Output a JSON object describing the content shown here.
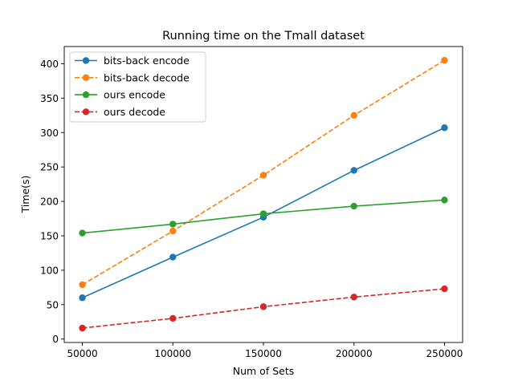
{
  "chart_data": {
    "type": "line",
    "title": "Running time on the Tmall dataset",
    "xlabel": "Num of Sets",
    "ylabel": "Time(s)",
    "x": [
      50000,
      100000,
      150000,
      200000,
      250000
    ],
    "xlim": [
      40000,
      260000
    ],
    "ylim": [
      -5,
      425
    ],
    "xticks": [
      50000,
      100000,
      150000,
      200000,
      250000
    ],
    "yticks": [
      0,
      50,
      100,
      150,
      200,
      250,
      300,
      350,
      400
    ],
    "grid": false,
    "legend_position": "upper-left",
    "series": [
      {
        "name": "bits-back encode",
        "values": [
          60,
          119,
          177,
          245,
          307
        ],
        "color": "#1f77b4",
        "dash": "solid"
      },
      {
        "name": "bits-back decode",
        "values": [
          79,
          157,
          238,
          325,
          405
        ],
        "color": "#ff7f0e",
        "dash": "dashed"
      },
      {
        "name": "ours encode",
        "values": [
          154,
          167,
          182,
          193,
          202
        ],
        "color": "#2ca02c",
        "dash": "solid"
      },
      {
        "name": "ours decode",
        "values": [
          16,
          30,
          47,
          61,
          73
        ],
        "color": "#d62728",
        "dash": "dashed"
      }
    ]
  }
}
